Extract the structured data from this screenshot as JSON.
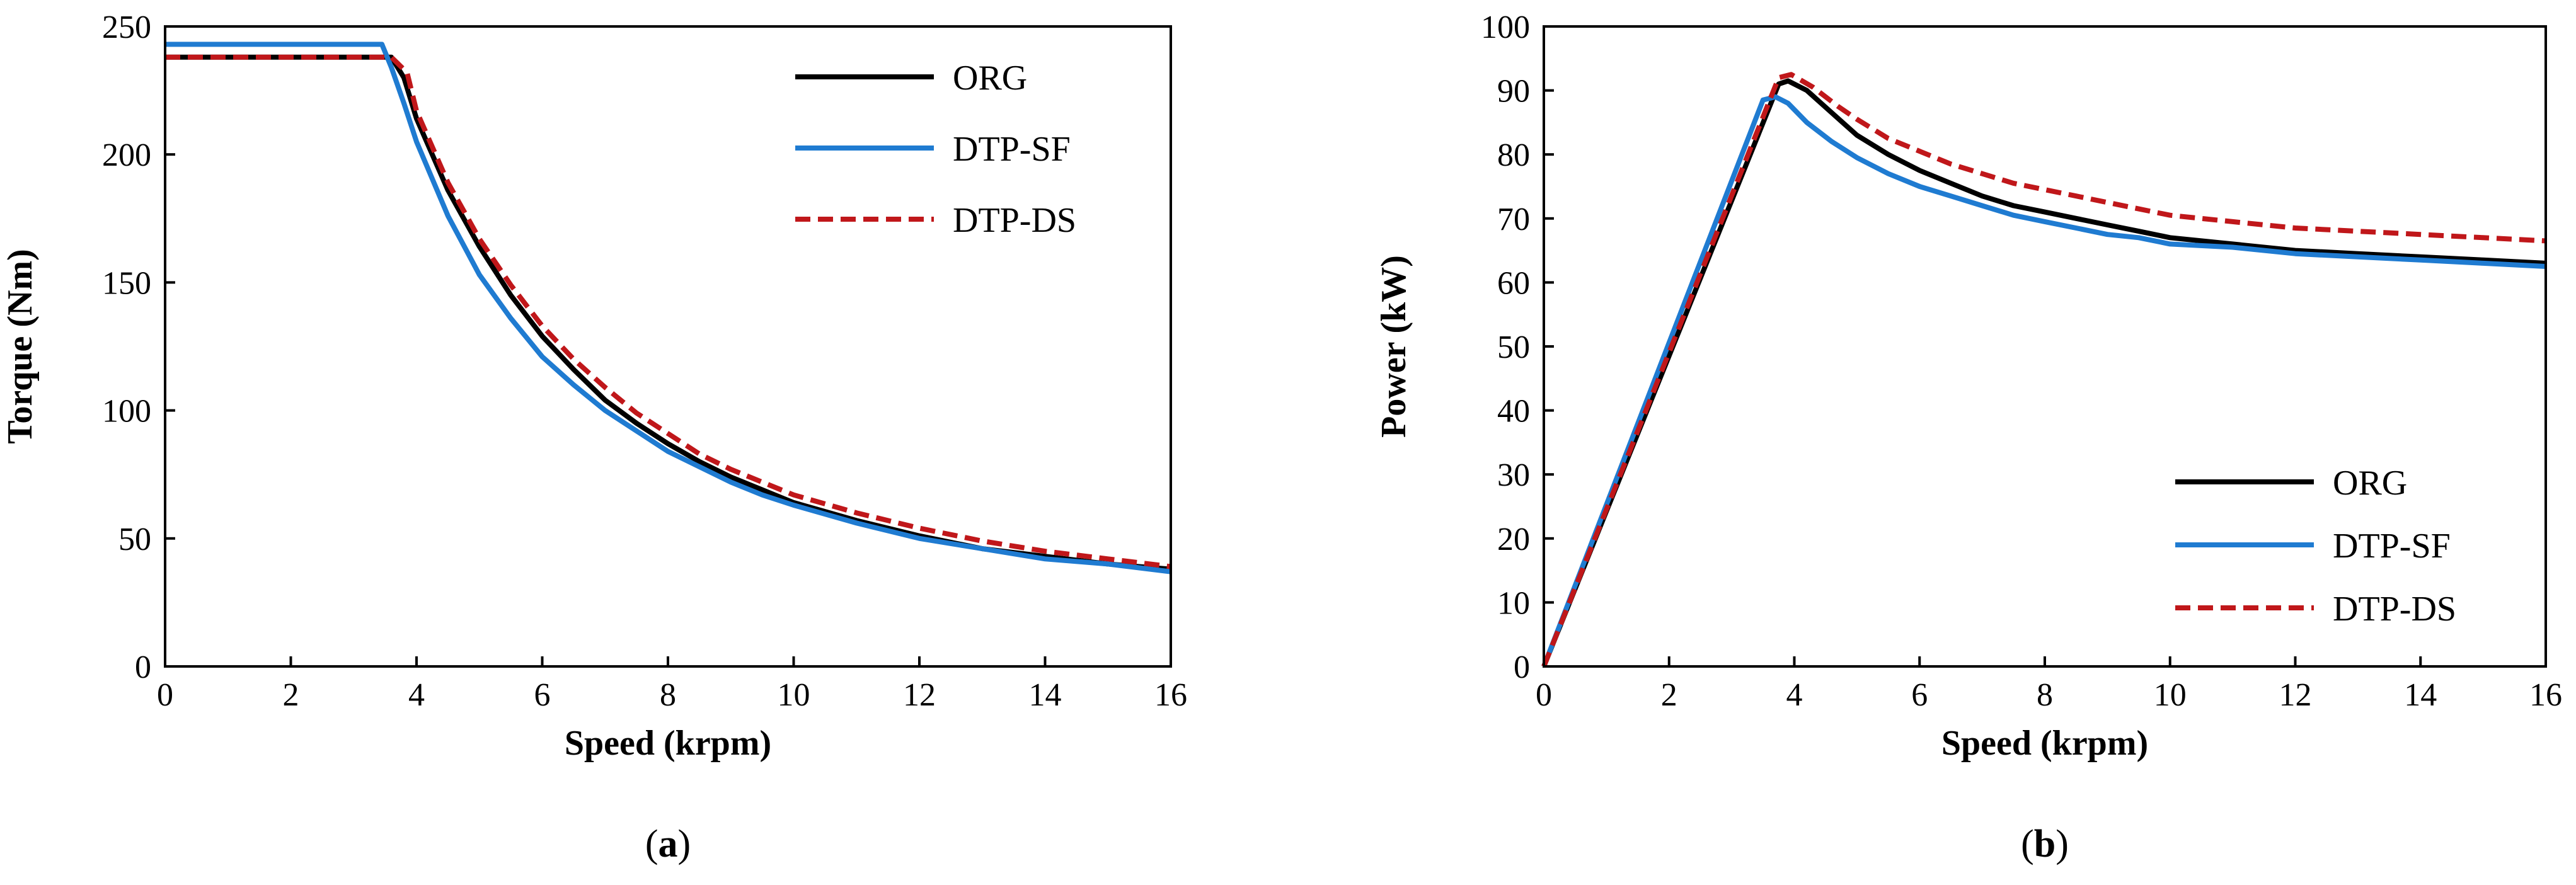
{
  "charts": [
    {
      "id": "a",
      "caption_open": "(",
      "caption_letter": "a",
      "caption_close": ")",
      "chart_data": {
        "type": "line",
        "title": "",
        "xlabel": "Speed (krpm)",
        "ylabel": "Torque (Nm)",
        "xlim": [
          0,
          16
        ],
        "ylim": [
          0,
          250
        ],
        "xticks": [
          0,
          2,
          4,
          6,
          8,
          10,
          12,
          14,
          16
        ],
        "yticks": [
          0,
          50,
          100,
          150,
          200,
          250
        ],
        "grid": false,
        "legend_position": "top-right",
        "series": [
          {
            "name": "ORG",
            "color": "#000000",
            "dash": "solid",
            "points": [
              [
                0,
                238
              ],
              [
                3.6,
                238
              ],
              [
                3.8,
                230
              ],
              [
                4,
                214
              ],
              [
                4.5,
                186
              ],
              [
                5,
                164
              ],
              [
                5.5,
                145
              ],
              [
                6,
                129
              ],
              [
                6.5,
                116
              ],
              [
                7,
                104
              ],
              [
                7.5,
                95
              ],
              [
                8,
                87
              ],
              [
                8.5,
                80
              ],
              [
                9,
                74
              ],
              [
                9.5,
                69
              ],
              [
                10,
                64
              ],
              [
                11,
                57
              ],
              [
                12,
                51
              ],
              [
                13,
                46
              ],
              [
                14,
                43
              ],
              [
                15,
                40
              ],
              [
                16,
                38
              ]
            ]
          },
          {
            "name": "DTP-SF",
            "color": "#1f7bd1",
            "dash": "solid",
            "points": [
              [
                0,
                243
              ],
              [
                3.45,
                243
              ],
              [
                3.6,
                234
              ],
              [
                3.8,
                220
              ],
              [
                4,
                205
              ],
              [
                4.5,
                176
              ],
              [
                5,
                153
              ],
              [
                5.5,
                136
              ],
              [
                6,
                121
              ],
              [
                6.5,
                110
              ],
              [
                7,
                100
              ],
              [
                7.5,
                92
              ],
              [
                8,
                84
              ],
              [
                8.5,
                78
              ],
              [
                9,
                72
              ],
              [
                9.5,
                67
              ],
              [
                10,
                63
              ],
              [
                11,
                56
              ],
              [
                12,
                50
              ],
              [
                13,
                46
              ],
              [
                14,
                42
              ],
              [
                15,
                40
              ],
              [
                16,
                37
              ]
            ]
          },
          {
            "name": "DTP-DS",
            "color": "#c0171a",
            "dash": "dashed",
            "points": [
              [
                0,
                238
              ],
              [
                3.6,
                238
              ],
              [
                3.85,
                232
              ],
              [
                4,
                217
              ],
              [
                4.5,
                189
              ],
              [
                5,
                167
              ],
              [
                5.5,
                149
              ],
              [
                6,
                133
              ],
              [
                6.5,
                120
              ],
              [
                7,
                109
              ],
              [
                7.5,
                99
              ],
              [
                8,
                91
              ],
              [
                8.5,
                83
              ],
              [
                9,
                77
              ],
              [
                9.5,
                72
              ],
              [
                10,
                67
              ],
              [
                11,
                60
              ],
              [
                12,
                54
              ],
              [
                13,
                49
              ],
              [
                14,
                45
              ],
              [
                15,
                42
              ],
              [
                16,
                39
              ]
            ]
          }
        ]
      }
    },
    {
      "id": "b",
      "caption_open": "(",
      "caption_letter": "b",
      "caption_close": ")",
      "chart_data": {
        "type": "line",
        "title": "",
        "xlabel": "Speed (krpm)",
        "ylabel": "Power (kW)",
        "xlim": [
          0,
          16
        ],
        "ylim": [
          0,
          100
        ],
        "xticks": [
          0,
          2,
          4,
          6,
          8,
          10,
          12,
          14,
          16
        ],
        "yticks": [
          0,
          10,
          20,
          30,
          40,
          50,
          60,
          70,
          80,
          90,
          100
        ],
        "grid": false,
        "legend_position": "bottom-right",
        "series": [
          {
            "name": "ORG",
            "color": "#000000",
            "dash": "solid",
            "points": [
              [
                0,
                0
              ],
              [
                3.75,
                91
              ],
              [
                3.9,
                91.5
              ],
              [
                4.2,
                90
              ],
              [
                4.6,
                86.5
              ],
              [
                5,
                83
              ],
              [
                5.5,
                80
              ],
              [
                6,
                77.5
              ],
              [
                6.5,
                75.5
              ],
              [
                7,
                73.5
              ],
              [
                7.5,
                72
              ],
              [
                8,
                71
              ],
              [
                8.5,
                70
              ],
              [
                9,
                69
              ],
              [
                9.5,
                68
              ],
              [
                10,
                67
              ],
              [
                10.5,
                66.5
              ],
              [
                11,
                66
              ],
              [
                12,
                65
              ],
              [
                13,
                64.5
              ],
              [
                14,
                64
              ],
              [
                15,
                63.5
              ],
              [
                16,
                63
              ]
            ]
          },
          {
            "name": "DTP-SF",
            "color": "#1f7bd1",
            "dash": "solid",
            "points": [
              [
                0,
                0
              ],
              [
                3.5,
                88.5
              ],
              [
                3.7,
                89
              ],
              [
                3.9,
                88
              ],
              [
                4.2,
                85
              ],
              [
                4.6,
                82
              ],
              [
                5,
                79.5
              ],
              [
                5.5,
                77
              ],
              [
                6,
                75
              ],
              [
                6.5,
                73.5
              ],
              [
                7,
                72
              ],
              [
                7.5,
                70.5
              ],
              [
                8,
                69.5
              ],
              [
                8.5,
                68.5
              ],
              [
                9,
                67.5
              ],
              [
                9.5,
                67
              ],
              [
                10,
                66
              ],
              [
                11,
                65.5
              ],
              [
                12,
                64.5
              ],
              [
                13,
                64
              ],
              [
                14,
                63.5
              ],
              [
                15,
                63
              ],
              [
                16,
                62.5
              ]
            ]
          },
          {
            "name": "DTP-DS",
            "color": "#c0171a",
            "dash": "dashed",
            "points": [
              [
                0,
                0
              ],
              [
                3.75,
                92
              ],
              [
                3.95,
                92.5
              ],
              [
                4.3,
                90.5
              ],
              [
                4.7,
                87.5
              ],
              [
                5,
                85.5
              ],
              [
                5.5,
                82.5
              ],
              [
                6,
                80.5
              ],
              [
                6.5,
                78.5
              ],
              [
                7,
                77
              ],
              [
                7.5,
                75.5
              ],
              [
                8,
                74.5
              ],
              [
                8.5,
                73.5
              ],
              [
                9,
                72.5
              ],
              [
                9.5,
                71.5
              ],
              [
                10,
                70.5
              ],
              [
                10.5,
                70
              ],
              [
                11,
                69.5
              ],
              [
                12,
                68.5
              ],
              [
                13,
                68
              ],
              [
                14,
                67.5
              ],
              [
                15,
                67
              ],
              [
                16,
                66.5
              ]
            ]
          }
        ]
      }
    }
  ]
}
